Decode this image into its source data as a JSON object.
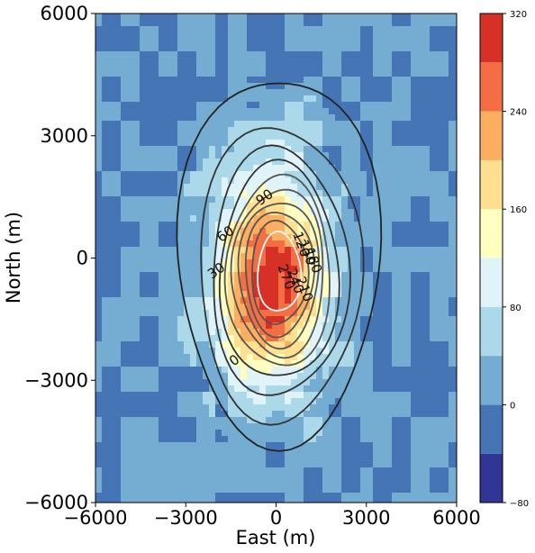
{
  "chart_data": {
    "type": "heatmap",
    "title": "",
    "xlabel": "East (m)",
    "ylabel": "North (m)",
    "xlim": [
      -6000,
      6000
    ],
    "ylim": [
      -6000,
      6000
    ],
    "xticks": [
      "−6000",
      "−3000",
      "0",
      "3000",
      "6000"
    ],
    "yticks": [
      "−6000",
      "−3000",
      "0",
      "3000",
      "6000"
    ],
    "grid": false,
    "field": {
      "description": "filled contour field of a single peaked anomaly",
      "peak_center": [
        -200,
        -600
      ],
      "peak_value": 320,
      "background_value": 0
    },
    "fill_levels": [
      -80,
      -40,
      0,
      40,
      80,
      120,
      160,
      200,
      240,
      280,
      320
    ],
    "fill_colors": [
      "#313695",
      "#4575b4",
      "#74add1",
      "#abd9e9",
      "#e0f3f8",
      "#ffffbf",
      "#fee090",
      "#fdae61",
      "#f46d43",
      "#d73027",
      "#a50026"
    ],
    "colorbar": {
      "ticks": [
        "−80",
        "0",
        "80",
        "160",
        "240",
        "320"
      ]
    },
    "contour_lines": [
      {
        "level": 0,
        "label": "0"
      },
      {
        "level": 30,
        "label": "30"
      },
      {
        "level": 60,
        "label": "60"
      },
      {
        "level": 90,
        "label": "90"
      },
      {
        "level": 120,
        "label": "120"
      },
      {
        "level": 150,
        "label": "150"
      },
      {
        "level": 180,
        "label": "180"
      },
      {
        "level": 210,
        "label": "210"
      },
      {
        "level": 240,
        "label": "240"
      },
      {
        "level": 270,
        "label": "270"
      }
    ]
  }
}
